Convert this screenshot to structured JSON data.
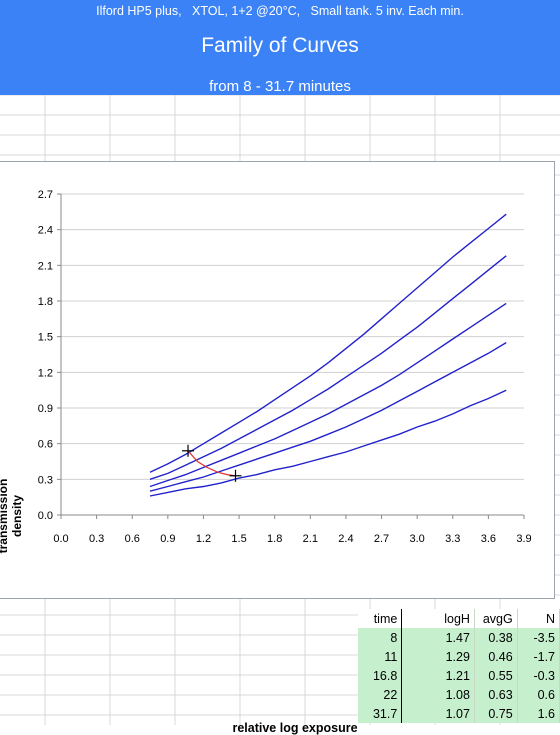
{
  "header": {
    "subtitle": "Ilford HP5 plus,   XTOL, 1+2 @20°C,   Small tank. 5 inv. Each min.",
    "title": "Family of Curves",
    "range": "from 8 - 31.7 minutes"
  },
  "colors": {
    "header_bg": "#3b82f6",
    "curve": "#2222cc",
    "connector": "#e03030",
    "table_bg": "#c6efce"
  },
  "chart_data": {
    "type": "line",
    "xlabel": "relative log exposure",
    "ylabel": "transmission density",
    "xlim": [
      0.0,
      3.9
    ],
    "ylim": [
      0.0,
      2.7
    ],
    "xticks": [
      "0.0",
      "0.3",
      "0.6",
      "0.9",
      "1.2",
      "1.5",
      "1.8",
      "2.1",
      "2.4",
      "2.7",
      "3.0",
      "3.3",
      "3.6",
      "3.9"
    ],
    "yticks": [
      "0.0",
      "0.3",
      "0.6",
      "0.9",
      "1.2",
      "1.5",
      "1.8",
      "2.1",
      "2.4",
      "2.7"
    ],
    "grid": "horizontal",
    "series": [
      {
        "x": [
          0.75,
          0.9,
          1.05,
          1.2,
          1.35,
          1.5,
          1.65,
          1.8,
          1.95,
          2.1,
          2.25,
          2.4,
          2.55,
          2.7,
          2.85,
          3.0,
          3.15,
          3.3,
          3.45,
          3.6,
          3.75
        ],
        "y": [
          0.16,
          0.19,
          0.22,
          0.24,
          0.27,
          0.31,
          0.34,
          0.38,
          0.41,
          0.45,
          0.49,
          0.53,
          0.58,
          0.63,
          0.68,
          0.74,
          0.79,
          0.85,
          0.92,
          0.98,
          1.05
        ]
      },
      {
        "x": [
          0.75,
          0.9,
          1.05,
          1.2,
          1.35,
          1.5,
          1.65,
          1.8,
          1.95,
          2.1,
          2.25,
          2.4,
          2.55,
          2.7,
          2.85,
          3.0,
          3.15,
          3.3,
          3.45,
          3.6,
          3.75
        ],
        "y": [
          0.2,
          0.24,
          0.28,
          0.32,
          0.37,
          0.42,
          0.47,
          0.52,
          0.57,
          0.62,
          0.68,
          0.74,
          0.81,
          0.88,
          0.96,
          1.04,
          1.12,
          1.2,
          1.28,
          1.36,
          1.45
        ]
      },
      {
        "x": [
          0.75,
          0.9,
          1.05,
          1.2,
          1.35,
          1.5,
          1.65,
          1.8,
          1.95,
          2.1,
          2.25,
          2.4,
          2.55,
          2.7,
          2.85,
          3.0,
          3.15,
          3.3,
          3.45,
          3.6,
          3.75
        ],
        "y": [
          0.24,
          0.29,
          0.34,
          0.4,
          0.46,
          0.52,
          0.58,
          0.64,
          0.71,
          0.78,
          0.85,
          0.93,
          1.01,
          1.09,
          1.18,
          1.28,
          1.38,
          1.48,
          1.58,
          1.68,
          1.78
        ]
      },
      {
        "x": [
          0.75,
          0.9,
          1.05,
          1.2,
          1.35,
          1.5,
          1.65,
          1.8,
          1.95,
          2.1,
          2.25,
          2.4,
          2.55,
          2.7,
          2.85,
          3.0,
          3.15,
          3.3,
          3.45,
          3.6,
          3.75
        ],
        "y": [
          0.3,
          0.35,
          0.42,
          0.49,
          0.56,
          0.64,
          0.72,
          0.8,
          0.88,
          0.97,
          1.06,
          1.16,
          1.26,
          1.36,
          1.47,
          1.58,
          1.7,
          1.82,
          1.94,
          2.06,
          2.18
        ]
      },
      {
        "x": [
          0.75,
          0.9,
          1.05,
          1.2,
          1.35,
          1.5,
          1.65,
          1.8,
          1.95,
          2.1,
          2.25,
          2.4,
          2.55,
          2.7,
          2.85,
          3.0,
          3.15,
          3.3,
          3.45,
          3.6,
          3.75
        ],
        "y": [
          0.36,
          0.43,
          0.51,
          0.6,
          0.69,
          0.78,
          0.87,
          0.97,
          1.07,
          1.17,
          1.28,
          1.4,
          1.52,
          1.65,
          1.78,
          1.91,
          2.04,
          2.17,
          2.29,
          2.41,
          2.53
        ]
      }
    ],
    "markers": [
      {
        "x": 1.07,
        "y": 0.54
      },
      {
        "x": 1.47,
        "y": 0.33
      }
    ],
    "connector": {
      "x": [
        1.07,
        1.15,
        1.23,
        1.32,
        1.4,
        1.47
      ],
      "y": [
        0.54,
        0.45,
        0.4,
        0.36,
        0.34,
        0.33
      ]
    }
  },
  "table": {
    "headers": [
      "time",
      "logH",
      "avgG",
      "N"
    ],
    "rows": [
      [
        "8",
        "1.47",
        "0.38",
        "-3.5"
      ],
      [
        "11",
        "1.29",
        "0.46",
        "-1.7"
      ],
      [
        "16.8",
        "1.21",
        "0.55",
        "-0.3"
      ],
      [
        "22",
        "1.08",
        "0.63",
        "0.6"
      ],
      [
        "31.7",
        "1.07",
        "0.75",
        "1.6"
      ]
    ]
  }
}
